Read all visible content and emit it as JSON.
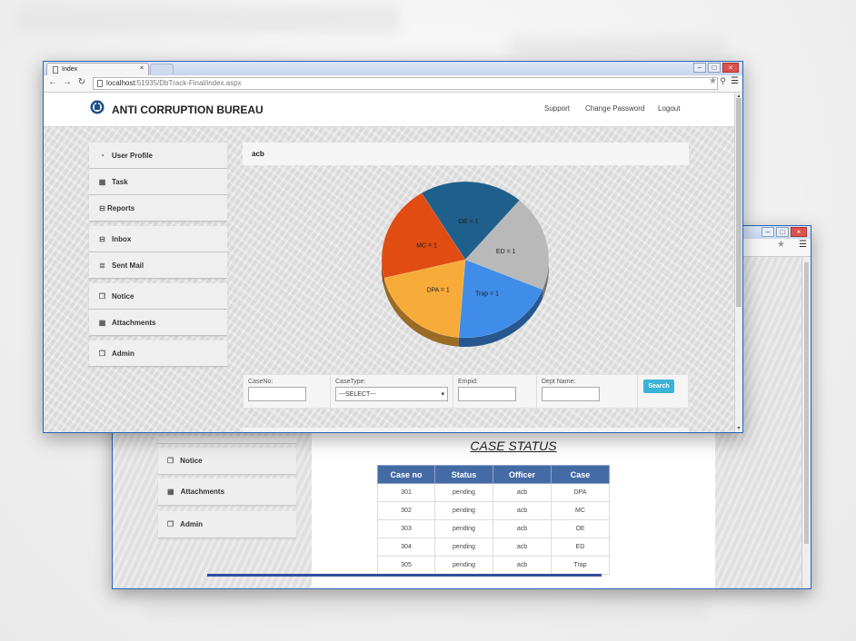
{
  "front_window": {
    "tab_title": "Index",
    "tab_close": "×",
    "url_host": "localhost",
    "url_path": ":51935/DbTrack-Final/index.aspx",
    "controls": {
      "minimize": "–",
      "maximize": "□",
      "close": "×"
    }
  },
  "nav_icons": {
    "back": "←",
    "forward": "→",
    "reload": "↻",
    "star": "★",
    "extension": "⚲",
    "menu": "☰"
  },
  "app": {
    "brand": "ANTI CORRUPTION BUREAU",
    "nav_links": [
      "Support",
      "Change Password",
      "Logout"
    ]
  },
  "sidebar": {
    "items": [
      {
        "label": "User Profile",
        "icon": "dashboard-icon"
      },
      {
        "label": "Task",
        "icon": "grid-icon"
      },
      {
        "label": "Reports",
        "icon": "inbox-icon"
      },
      {
        "label": "Inbox",
        "icon": "inbox-icon"
      },
      {
        "label": "Sent Mail",
        "icon": "list-icon"
      },
      {
        "label": "Notice",
        "icon": "copy-icon"
      },
      {
        "label": "Attachments",
        "icon": "grid-icon"
      },
      {
        "label": "Admin",
        "icon": "copy-icon"
      }
    ]
  },
  "content": {
    "header": "acb"
  },
  "chart_data": {
    "type": "pie",
    "title": "",
    "slices": [
      {
        "label": "OE = 1",
        "value": 1,
        "color": "#1f5f8b"
      },
      {
        "label": "ED = 1",
        "value": 1,
        "color": "#b9b9b9"
      },
      {
        "label": "Trap = 1",
        "value": 1,
        "color": "#3f8de8"
      },
      {
        "label": "DPA = 1",
        "value": 1,
        "color": "#f7ac3a"
      },
      {
        "label": "MC = 1",
        "value": 1,
        "color": "#e04c12"
      }
    ]
  },
  "filters": {
    "caseno_label": "CaseNo:",
    "casetype_label": "CaseType:",
    "casetype_selected": "---SELECT---",
    "empid_label": "Empid:",
    "dept_label": "Dept Name:",
    "search_button": "Search"
  },
  "back_window": {
    "sidebar": [
      "Notice",
      "Attachments",
      "Admin"
    ],
    "title": "CASE STATUS",
    "table": {
      "headers": [
        "Case no",
        "Status",
        "Officer",
        "Case"
      ],
      "rows": [
        [
          "301",
          "pending",
          "acb",
          "DPA"
        ],
        [
          "302",
          "pending",
          "acb",
          "MC"
        ],
        [
          "303",
          "pending",
          "acb",
          "OE"
        ],
        [
          "304",
          "pending",
          "acb",
          "ED"
        ],
        [
          "305",
          "pending",
          "acb",
          "Trap"
        ]
      ]
    }
  },
  "colors": {
    "accent": "#3bb3d6",
    "table_header": "#456ba7",
    "window_border": "#2a64b4"
  }
}
